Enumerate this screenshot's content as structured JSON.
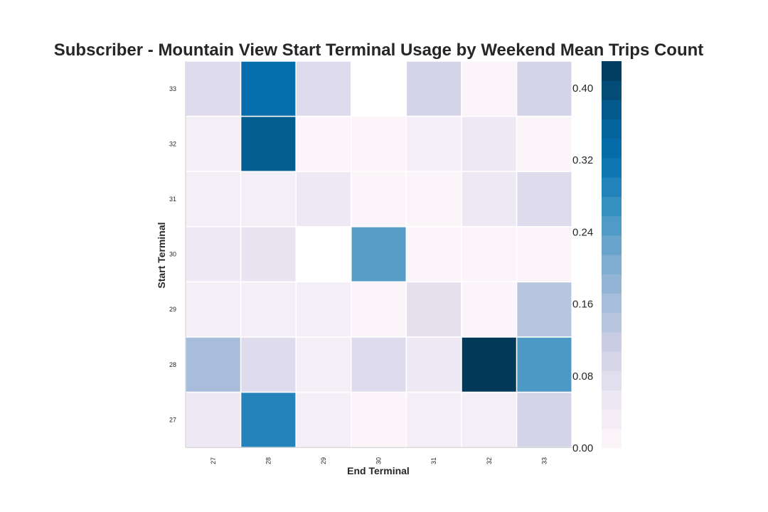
{
  "chart_data": {
    "type": "heatmap",
    "title": "Subscriber - Mountain View Start Terminal Usage by Weekend Mean Trips Count",
    "xlabel": "End Terminal",
    "ylabel": "Start Terminal",
    "x_categories": [
      "27",
      "28",
      "29",
      "30",
      "31",
      "32",
      "33"
    ],
    "y_categories": [
      "33",
      "32",
      "31",
      "30",
      "29",
      "28",
      "27"
    ],
    "values": [
      [
        0.08,
        0.33,
        0.08,
        null,
        0.1,
        0.01,
        0.1
      ],
      [
        0.03,
        0.37,
        0.01,
        0.01,
        0.03,
        0.05,
        0.01
      ],
      [
        0.03,
        0.03,
        0.05,
        0.01,
        0.01,
        0.05,
        0.08
      ],
      [
        0.05,
        0.06,
        null,
        0.24,
        0.01,
        0.01,
        0.01
      ],
      [
        0.03,
        0.03,
        0.03,
        0.01,
        0.07,
        0.01,
        0.14
      ],
      [
        0.16,
        0.08,
        0.03,
        0.08,
        0.05,
        0.43,
        0.25
      ],
      [
        0.05,
        0.29,
        0.03,
        0.01,
        0.03,
        0.03,
        0.1
      ]
    ],
    "colorbar": {
      "vmin": 0.0,
      "vmax": 0.43,
      "ticks": [
        "0.00",
        "0.08",
        "0.16",
        "0.24",
        "0.32",
        "0.40"
      ],
      "tick_values": [
        0.0,
        0.08,
        0.16,
        0.24,
        0.32,
        0.4
      ]
    },
    "colormap": [
      "#fff7fb",
      "#ece7f2",
      "#d0d1e6",
      "#a6bddb",
      "#74a9cf",
      "#3690c0",
      "#0570b0",
      "#045a8d",
      "#023858"
    ],
    "grid": false,
    "legend": "colorbar-right"
  }
}
